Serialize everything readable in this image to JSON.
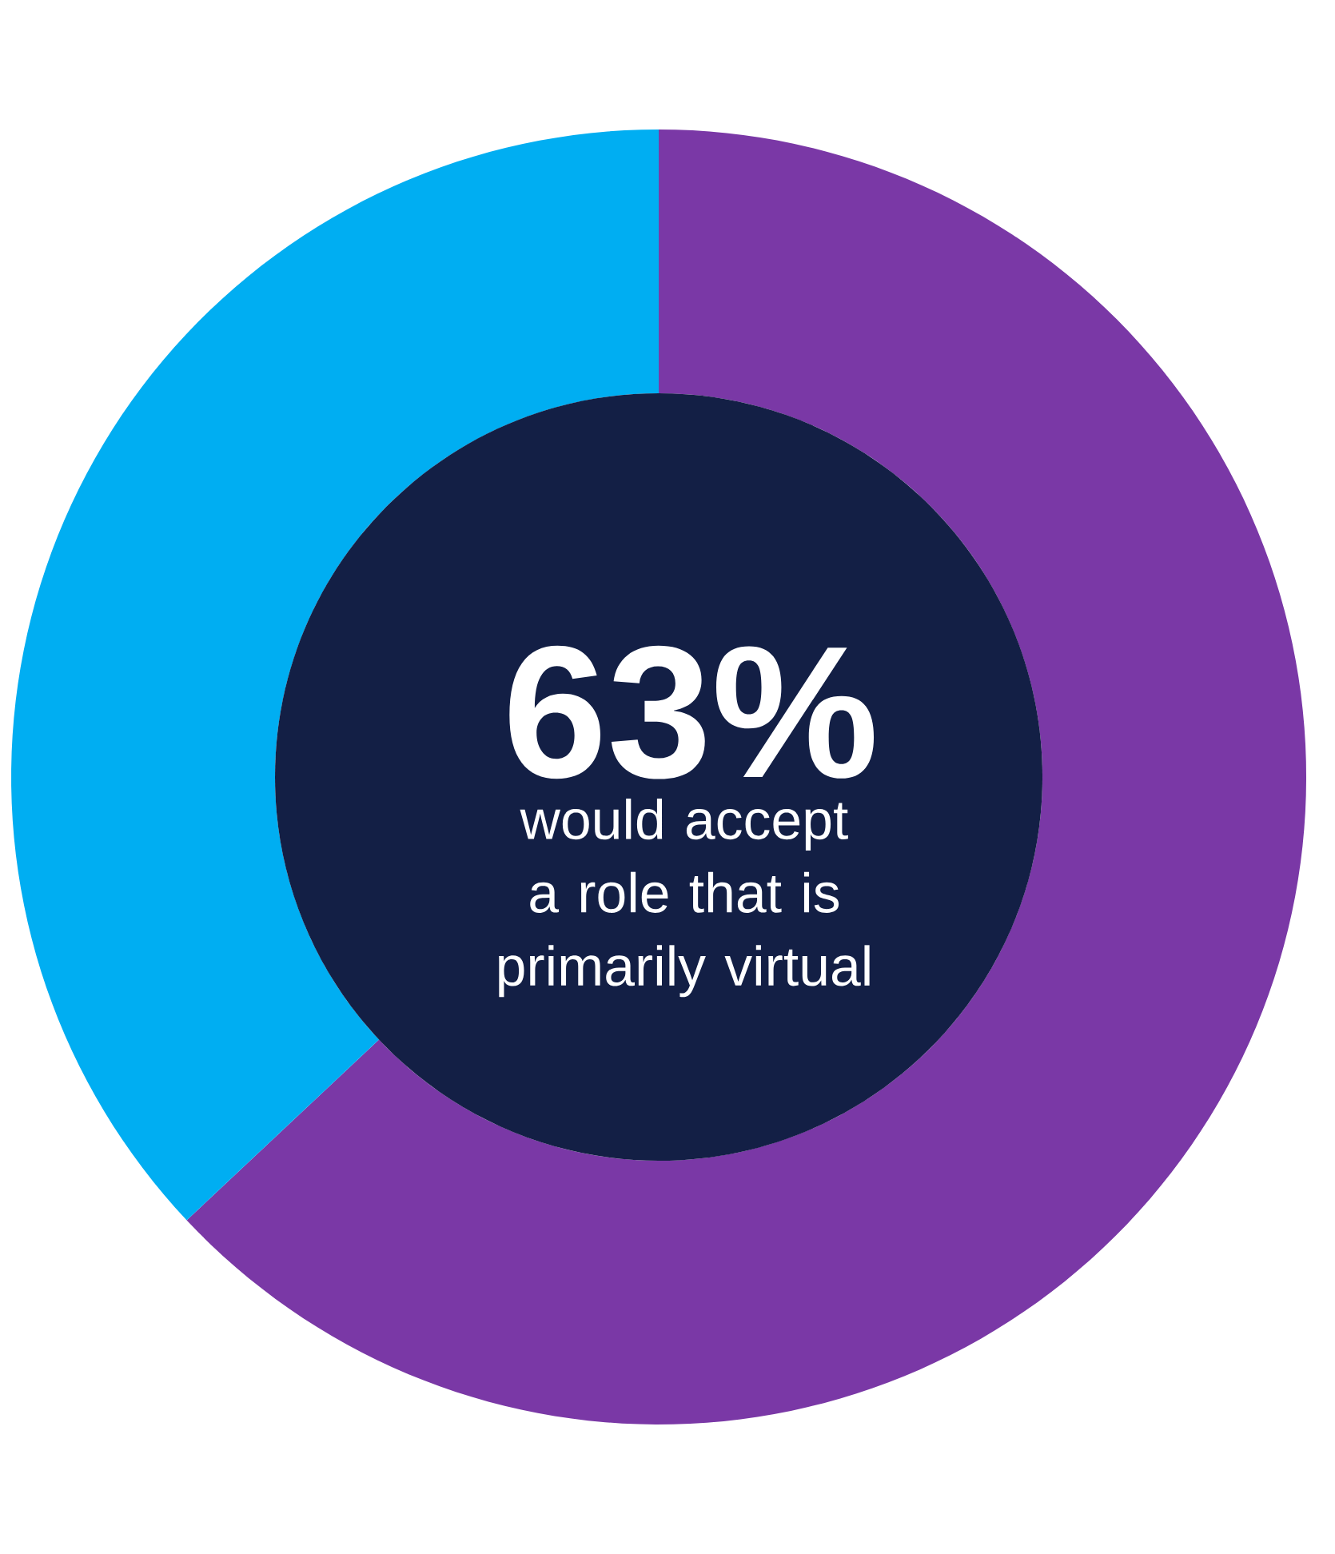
{
  "chart_data": {
    "type": "donut",
    "categories": [
      null,
      null
    ],
    "values": [
      63,
      37
    ],
    "colors": [
      "#7a38a6",
      "#00aef2"
    ],
    "value_labels": [
      "63%",
      null
    ],
    "annotations": [
      "would accept a role that is primarily virtual"
    ]
  }
}
